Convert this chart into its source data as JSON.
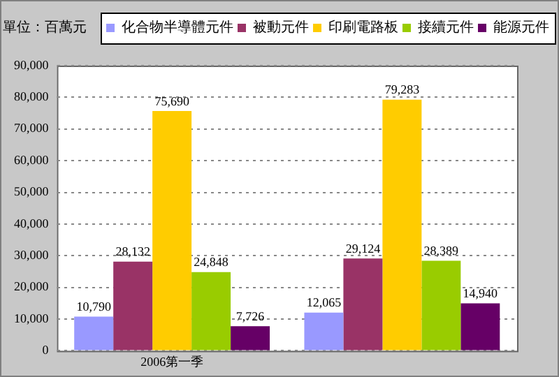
{
  "chart_data": {
    "type": "bar",
    "ylabel": "單位：百萬元",
    "categories": [
      "2006第一季",
      null
    ],
    "series": [
      {
        "name": "化合物半導體元件",
        "color": "#9999ff",
        "values": [
          10790,
          12065
        ],
        "value_labels": [
          "10,790",
          "12,065"
        ]
      },
      {
        "name": "被動元件",
        "color": "#993366",
        "values": [
          28132,
          29124
        ],
        "value_labels": [
          "28,132",
          "29,124"
        ]
      },
      {
        "name": "印刷電路板",
        "color": "#ffcc00",
        "values": [
          75690,
          79283
        ],
        "value_labels": [
          "75,690",
          "79,283"
        ]
      },
      {
        "name": "接續元件",
        "color": "#99cc00",
        "values": [
          24848,
          28389
        ],
        "value_labels": [
          "24,848",
          "28,389"
        ]
      },
      {
        "name": "能源元件",
        "color": "#660066",
        "values": [
          7726,
          14940
        ],
        "value_labels": [
          "7,726",
          "14,940"
        ]
      }
    ],
    "ylim": [
      0,
      90000
    ],
    "yticks": [
      0,
      {
        "value": 10000,
        "label": "10,000"
      },
      {
        "value": 20000,
        "label": "20,000"
      },
      {
        "value": 30000,
        "label": "30,000"
      },
      {
        "value": 40000,
        "label": "40,000"
      },
      {
        "value": 50000,
        "label": "50,000"
      },
      {
        "value": 60000,
        "label": "60,000"
      },
      {
        "value": 70000,
        "label": "70,000"
      },
      {
        "value": 80000,
        "label": "80,000"
      },
      {
        "value": 90000,
        "label": "90,000"
      }
    ],
    "grid": "y",
    "legend": "top"
  }
}
